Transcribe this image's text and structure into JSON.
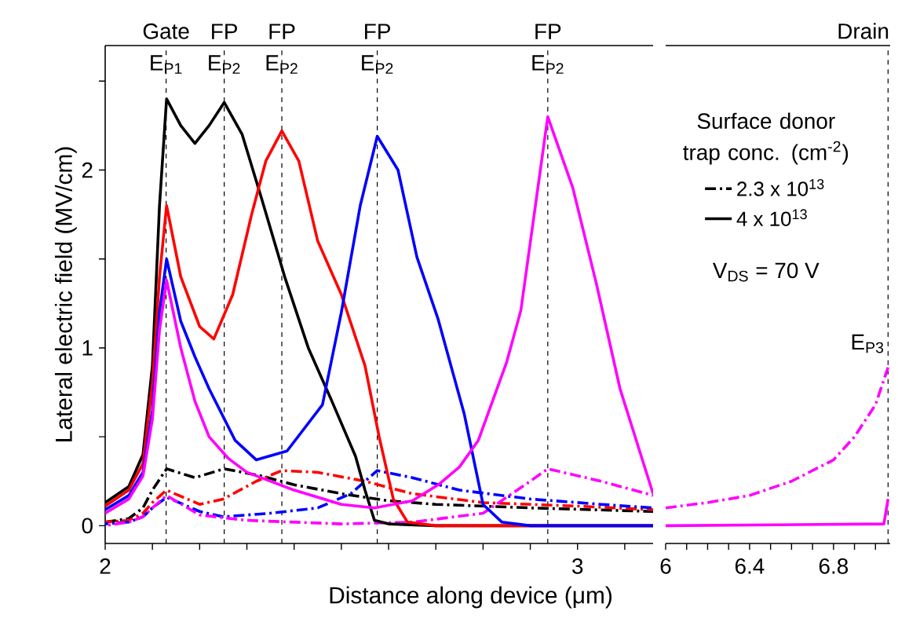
{
  "chart_data": [
    {
      "type": "line",
      "xlabel": "Distance along device (μm)",
      "ylabel": "Lateral electric field (MV/cm)",
      "marker": "none",
      "xlim": [
        2,
        3.16
      ],
      "ylim": [
        -0.1,
        2.7
      ],
      "xticks": [
        2,
        {
          "value": 2.1,
          "label": null
        },
        {
          "value": 2.2,
          "label": null
        },
        {
          "value": 2.3,
          "label": null
        },
        {
          "value": 2.4,
          "label": null
        },
        {
          "value": 2.5,
          "label": null
        },
        {
          "value": 2.6,
          "label": null
        },
        {
          "value": 2.7,
          "label": null
        },
        {
          "value": 2.8,
          "label": null
        },
        {
          "value": 2.9,
          "label": null
        },
        3,
        {
          "value": 3.1,
          "label": null
        }
      ],
      "yticks": [
        0,
        {
          "value": 0.5,
          "label": null
        },
        1,
        {
          "value": 1.5,
          "label": null
        },
        2,
        {
          "value": 2.5,
          "label": null
        }
      ],
      "ref_lines": [
        {
          "axis": "x",
          "value": 2.129,
          "label": "E$_{P1}$",
          "line_style": "dashed",
          "color": "#000000"
        },
        {
          "axis": "x",
          "value": 2.252,
          "label": "E$_{P2}$",
          "line_style": "dashed",
          "color": "#000000"
        },
        {
          "axis": "x",
          "value": 2.374,
          "label": "E$_{P2}$",
          "line_style": "dashed",
          "color": "#000000"
        },
        {
          "axis": "x",
          "value": 2.576,
          "label": "E$_{P2}$",
          "line_style": "dashed",
          "color": "#000000"
        },
        {
          "axis": "x",
          "value": 2.937,
          "label": "E$_{P2}$",
          "line_style": "dashed",
          "color": "#000000"
        }
      ],
      "legend": "top right",
      "legend_title": "Surface donor trap conc. (cm$^{-2}$)",
      "annotations": [
        "V$_{DS}$ = 70 V",
        {
          "text": "Gate",
          "x": 2.129,
          "y": 2.7
        },
        {
          "text": "FP",
          "x": 2.252,
          "y": 2.7
        },
        {
          "text": "FP",
          "x": 2.374,
          "y": 2.7
        },
        {
          "text": "FP",
          "x": 2.576,
          "y": 2.7
        },
        {
          "text": "FP",
          "x": 2.937,
          "y": 2.7
        }
      ],
      "series": [
        {
          "name": "2.3 x 10$^{13}$",
          "color": "#000000",
          "line_style": "dashdot",
          "x": [
            2.0,
            2.05,
            2.08,
            2.1,
            2.13,
            2.19,
            2.252,
            2.33,
            2.4,
            2.5,
            2.6,
            2.7,
            2.9,
            3.16
          ],
          "values": [
            0.02,
            0.04,
            0.1,
            0.2,
            0.32,
            0.27,
            0.32,
            0.28,
            0.23,
            0.18,
            0.14,
            0.12,
            0.1,
            0.08
          ]
        },
        {
          "color": "#ff0000",
          "line_style": "dashdot",
          "x": [
            2.0,
            2.05,
            2.08,
            2.1,
            2.13,
            2.2,
            2.25,
            2.32,
            2.374,
            2.45,
            2.55,
            2.65,
            2.8,
            3.0,
            3.16
          ],
          "values": [
            0.02,
            0.03,
            0.07,
            0.13,
            0.2,
            0.12,
            0.15,
            0.25,
            0.31,
            0.3,
            0.25,
            0.18,
            0.13,
            0.11,
            0.09
          ]
        },
        {
          "color": "#0000ff",
          "line_style": "dashdot",
          "x": [
            2.0,
            2.05,
            2.08,
            2.1,
            2.13,
            2.2,
            2.25,
            2.35,
            2.45,
            2.52,
            2.576,
            2.65,
            2.75,
            2.9,
            3.05,
            3.16
          ],
          "values": [
            0.01,
            0.02,
            0.05,
            0.1,
            0.16,
            0.08,
            0.05,
            0.07,
            0.1,
            0.18,
            0.31,
            0.27,
            0.2,
            0.15,
            0.12,
            0.1
          ]
        },
        {
          "color": "#ff00ff",
          "line_style": "dashdot",
          "x": [
            2.0,
            2.05,
            2.08,
            2.1,
            2.13,
            2.2,
            2.3,
            2.5,
            2.65,
            2.8,
            2.9,
            2.937,
            3.05,
            3.16
          ],
          "values": [
            0.0,
            0.02,
            0.05,
            0.1,
            0.17,
            0.06,
            0.03,
            0.01,
            0.02,
            0.07,
            0.25,
            0.32,
            0.25,
            0.17
          ]
        },
        {
          "name": "4 x 10$^{13}$",
          "color": "#000000",
          "line_style": "solid",
          "x": [
            2.0,
            2.05,
            2.08,
            2.1,
            2.115,
            2.13,
            2.16,
            2.19,
            2.22,
            2.252,
            2.29,
            2.33,
            2.38,
            2.43,
            2.48,
            2.53,
            2.55,
            2.57,
            2.6,
            2.7,
            3.16
          ],
          "values": [
            0.13,
            0.22,
            0.4,
            0.9,
            1.8,
            2.4,
            2.25,
            2.15,
            2.25,
            2.38,
            2.2,
            1.85,
            1.4,
            1.0,
            0.7,
            0.39,
            0.2,
            0.03,
            0.01,
            0.0,
            0.0
          ]
        },
        {
          "color": "#ff0000",
          "line_style": "solid",
          "x": [
            2.0,
            2.05,
            2.08,
            2.1,
            2.115,
            2.13,
            2.16,
            2.2,
            2.23,
            2.27,
            2.31,
            2.34,
            2.374,
            2.41,
            2.45,
            2.5,
            2.55,
            2.58,
            2.61,
            2.64,
            2.7,
            3.16
          ],
          "values": [
            0.11,
            0.2,
            0.35,
            0.8,
            1.4,
            1.8,
            1.4,
            1.12,
            1.05,
            1.3,
            1.75,
            2.05,
            2.22,
            2.05,
            1.6,
            1.3,
            0.9,
            0.5,
            0.15,
            0.02,
            0.0,
            0.0
          ]
        },
        {
          "color": "#0000ff",
          "line_style": "solid",
          "x": [
            2.0,
            2.05,
            2.08,
            2.1,
            2.115,
            2.13,
            2.16,
            2.19,
            2.22,
            2.275,
            2.32,
            2.385,
            2.46,
            2.5,
            2.54,
            2.576,
            2.62,
            2.66,
            2.705,
            2.76,
            2.8,
            2.84,
            2.9,
            3.16
          ],
          "values": [
            0.09,
            0.17,
            0.3,
            0.65,
            1.2,
            1.5,
            1.15,
            0.95,
            0.77,
            0.48,
            0.37,
            0.42,
            0.68,
            1.2,
            1.8,
            2.19,
            2.0,
            1.51,
            1.16,
            0.63,
            0.12,
            0.02,
            0.0,
            0.0
          ]
        },
        {
          "color": "#ff00ff",
          "line_style": "solid",
          "x": [
            2.0,
            2.05,
            2.08,
            2.1,
            2.115,
            2.13,
            2.16,
            2.19,
            2.22,
            2.26,
            2.3,
            2.4,
            2.5,
            2.57,
            2.65,
            2.705,
            2.75,
            2.79,
            2.85,
            2.88,
            2.937,
            2.99,
            3.04,
            3.09,
            3.135,
            3.16
          ],
          "values": [
            0.07,
            0.15,
            0.28,
            0.6,
            1.1,
            1.38,
            1.0,
            0.7,
            0.5,
            0.38,
            0.3,
            0.2,
            0.12,
            0.1,
            0.14,
            0.23,
            0.33,
            0.48,
            0.92,
            1.21,
            2.3,
            1.9,
            1.36,
            0.77,
            0.39,
            0.18
          ]
        }
      ]
    },
    {
      "type": "line",
      "marker": "none",
      "tick_labels": "x",
      "xlim": [
        6,
        7.07
      ],
      "ylim": [
        -0.1,
        2.7
      ],
      "xticks": [
        6,
        {
          "value": 6.1,
          "label": null
        },
        {
          "value": 6.2,
          "label": null
        },
        {
          "value": 6.3,
          "label": null
        },
        6.4,
        {
          "value": 6.5,
          "label": null
        },
        {
          "value": 6.6,
          "label": null
        },
        {
          "value": 6.7,
          "label": null
        },
        6.8,
        {
          "value": 6.9,
          "label": null
        },
        {
          "value": 7.0,
          "label": null
        }
      ],
      "ref_lines": [
        {
          "axis": "x",
          "value": 7.06,
          "line_style": "dashed",
          "color": "#000000"
        }
      ],
      "annotations": [
        {
          "text": "E$_{P3}$",
          "x": 7.06,
          "y": 0.89
        },
        {
          "text": "Drain",
          "x": 7.06,
          "y": 2.7
        }
      ],
      "series": [
        {
          "color": "#ff00ff",
          "line_style": "dashdot",
          "x": [
            6.0,
            6.2,
            6.4,
            6.6,
            6.8,
            6.9,
            7.0,
            7.06
          ],
          "values": [
            0.1,
            0.13,
            0.17,
            0.25,
            0.37,
            0.5,
            0.68,
            0.89
          ]
        },
        {
          "color": "#ff00ff",
          "line_style": "solid",
          "x": [
            6.0,
            7.04,
            7.06
          ],
          "values": [
            0.0,
            0.01,
            0.15
          ]
        }
      ]
    }
  ]
}
